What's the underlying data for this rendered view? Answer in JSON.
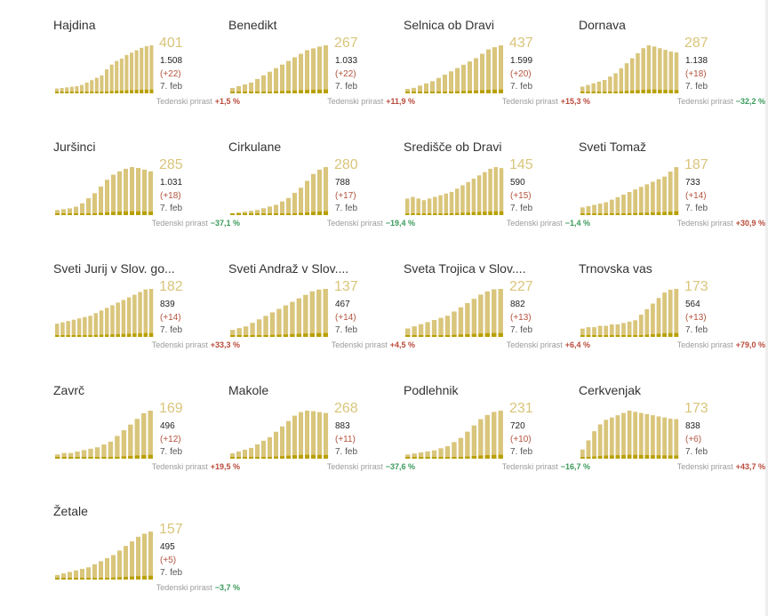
{
  "labels": {
    "weekly_growth": "Tedenski prirast"
  },
  "colors": {
    "active": "#d9c57b",
    "daily": "#b8a000",
    "up": "#b94a3a",
    "down": "#3b9a5b"
  },
  "chart_data": [
    {
      "type": "bar",
      "title": "Hajdina",
      "active": "401",
      "cumulative": "1.508",
      "change": "(+22)",
      "date": "7. feb",
      "weekly": "+1,5 %",
      "trend": "up",
      "series": [
        {
          "values": [
            40,
            45,
            50,
            55,
            60,
            70,
            90,
            110,
            130,
            150,
            200,
            240,
            270,
            290,
            320,
            340,
            360,
            380,
            395,
            401
          ]
        }
      ]
    },
    {
      "type": "bar",
      "title": "Benedikt",
      "active": "267",
      "cumulative": "1.033",
      "change": "(+22)",
      "date": "7. feb",
      "weekly": "+11,9 %",
      "trend": "up",
      "series": [
        {
          "values": [
            30,
            40,
            50,
            60,
            80,
            100,
            120,
            140,
            160,
            180,
            200,
            220,
            240,
            250,
            260,
            267
          ]
        }
      ]
    },
    {
      "type": "bar",
      "title": "Selnica ob Dravi",
      "active": "437",
      "cumulative": "1.599",
      "change": "(+20)",
      "date": "7. feb",
      "weekly": "+15,3 %",
      "trend": "up",
      "series": [
        {
          "values": [
            40,
            50,
            70,
            90,
            110,
            140,
            170,
            200,
            230,
            260,
            290,
            320,
            360,
            400,
            420,
            437
          ]
        }
      ]
    },
    {
      "type": "bar",
      "title": "Dornava",
      "active": "287",
      "cumulative": "1.138",
      "change": "(+18)",
      "date": "7. feb",
      "weekly": "−32,2 %",
      "trend": "down",
      "series": [
        {
          "values": [
            40,
            50,
            60,
            70,
            80,
            100,
            120,
            150,
            180,
            210,
            240,
            270,
            287,
            280,
            270,
            260,
            250,
            245
          ]
        }
      ]
    },
    {
      "type": "bar",
      "title": "Juršinci",
      "active": "285",
      "cumulative": "1.031",
      "change": "(+18)",
      "date": "7. feb",
      "weekly": "−37,1 %",
      "trend": "down",
      "series": [
        {
          "values": [
            30,
            35,
            40,
            50,
            70,
            100,
            130,
            170,
            210,
            240,
            260,
            275,
            285,
            280,
            270,
            260
          ]
        }
      ]
    },
    {
      "type": "bar",
      "title": "Cirkulane",
      "active": "280",
      "cumulative": "788",
      "change": "(+17)",
      "date": "7. feb",
      "weekly": "−19,4 %",
      "trend": "down",
      "series": [
        {
          "values": [
            10,
            15,
            20,
            25,
            30,
            40,
            50,
            60,
            80,
            100,
            130,
            160,
            200,
            240,
            265,
            280
          ]
        }
      ]
    },
    {
      "type": "bar",
      "title": "Središče ob Dravi",
      "active": "145",
      "cumulative": "590",
      "change": "(+15)",
      "date": "7. feb",
      "weekly": "−1,4 %",
      "trend": "down",
      "series": [
        {
          "values": [
            50,
            55,
            50,
            45,
            50,
            55,
            60,
            65,
            70,
            80,
            90,
            100,
            110,
            120,
            130,
            140,
            145,
            142
          ]
        }
      ]
    },
    {
      "type": "bar",
      "title": "Sveti Tomaž",
      "active": "187",
      "cumulative": "733",
      "change": "(+14)",
      "date": "7. feb",
      "weekly": "+30,9 %",
      "trend": "up",
      "series": [
        {
          "values": [
            30,
            35,
            40,
            45,
            50,
            60,
            70,
            80,
            90,
            100,
            110,
            120,
            130,
            140,
            150,
            170,
            187
          ]
        }
      ]
    },
    {
      "type": "bar",
      "title": "Sveti Jurij v Slov. go...",
      "active": "182",
      "cumulative": "839",
      "change": "(+14)",
      "date": "7. feb",
      "weekly": "+33,3 %",
      "trend": "up",
      "series": [
        {
          "values": [
            50,
            55,
            60,
            65,
            70,
            75,
            80,
            90,
            100,
            110,
            120,
            130,
            140,
            150,
            160,
            170,
            180,
            182
          ]
        }
      ]
    },
    {
      "type": "bar",
      "title": "Sveti Andraž v Slov....",
      "active": "137",
      "cumulative": "467",
      "change": "(+14)",
      "date": "7. feb",
      "weekly": "+4,5 %",
      "trend": "up",
      "series": [
        {
          "values": [
            20,
            25,
            30,
            40,
            50,
            60,
            70,
            80,
            90,
            100,
            110,
            120,
            130,
            135,
            137
          ]
        }
      ]
    },
    {
      "type": "bar",
      "title": "Sveta Trojica v Slov....",
      "active": "227",
      "cumulative": "882",
      "change": "(+13)",
      "date": "7. feb",
      "weekly": "+6,4 %",
      "trend": "up",
      "series": [
        {
          "values": [
            40,
            50,
            60,
            70,
            80,
            90,
            100,
            120,
            140,
            160,
            180,
            200,
            215,
            225,
            227
          ]
        }
      ]
    },
    {
      "type": "bar",
      "title": "Trnovska vas",
      "active": "173",
      "cumulative": "564",
      "change": "(+13)",
      "date": "7. feb",
      "weekly": "+79,0 %",
      "trend": "up",
      "series": [
        {
          "values": [
            30,
            35,
            35,
            40,
            40,
            45,
            45,
            50,
            55,
            60,
            80,
            100,
            120,
            140,
            160,
            170,
            173
          ]
        }
      ]
    },
    {
      "type": "bar",
      "title": "Zavrč",
      "active": "169",
      "cumulative": "496",
      "change": "(+12)",
      "date": "7. feb",
      "weekly": "+19,5 %",
      "trend": "up",
      "series": [
        {
          "values": [
            15,
            20,
            20,
            25,
            30,
            35,
            40,
            50,
            60,
            80,
            100,
            120,
            140,
            160,
            169
          ]
        }
      ]
    },
    {
      "type": "bar",
      "title": "Makole",
      "active": "268",
      "cumulative": "883",
      "change": "(+11)",
      "date": "7. feb",
      "weekly": "−37,6 %",
      "trend": "down",
      "series": [
        {
          "values": [
            30,
            40,
            50,
            60,
            80,
            100,
            120,
            150,
            180,
            210,
            240,
            260,
            268,
            265,
            260,
            255
          ]
        }
      ]
    },
    {
      "type": "bar",
      "title": "Podlehnik",
      "active": "231",
      "cumulative": "720",
      "change": "(+10)",
      "date": "7. feb",
      "weekly": "−16,7 %",
      "trend": "down",
      "series": [
        {
          "values": [
            20,
            25,
            30,
            35,
            40,
            50,
            60,
            80,
            100,
            130,
            160,
            190,
            210,
            225,
            231
          ]
        }
      ]
    },
    {
      "type": "bar",
      "title": "Cerkvenjak",
      "active": "173",
      "cumulative": "838",
      "change": "(+6)",
      "date": "7. feb",
      "weekly": "+43,7 %",
      "trend": "up",
      "series": [
        {
          "values": [
            40,
            80,
            120,
            150,
            170,
            180,
            190,
            200,
            210,
            205,
            200,
            195,
            190,
            185,
            180,
            175,
            173
          ]
        }
      ]
    },
    {
      "type": "bar",
      "title": "Žetale",
      "active": "157",
      "cumulative": "495",
      "change": "(+5)",
      "date": "7. feb",
      "weekly": "−3,7 %",
      "trend": "down",
      "series": [
        {
          "values": [
            15,
            20,
            25,
            30,
            35,
            40,
            50,
            60,
            70,
            80,
            95,
            110,
            125,
            140,
            150,
            157
          ]
        }
      ]
    }
  ]
}
